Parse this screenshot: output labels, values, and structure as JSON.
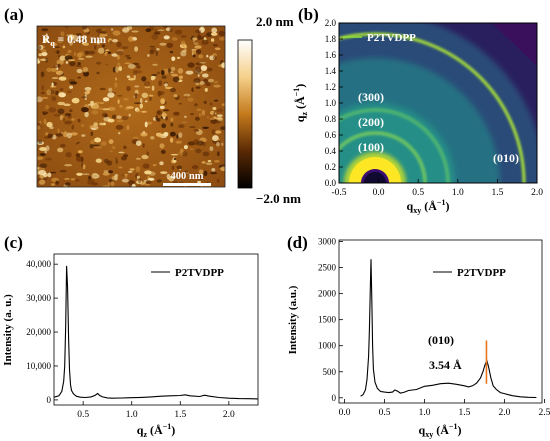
{
  "panels": {
    "a": {
      "label": "(a)",
      "roughness": "R",
      "roughness_sub": "q",
      "roughness_value": " = 0.48 nm",
      "scale_bar": "400 nm",
      "colorbar_max": "2.0 nm",
      "colorbar_min": "−2.0 nm"
    },
    "b": {
      "label": "(b)",
      "legend": "P2TVDPP",
      "peaks": [
        "(300)",
        "(200)",
        "(100)",
        "(010)"
      ],
      "ylabel_main": "q",
      "ylabel_sub": "z",
      "ylabel_unit": " (Å",
      "ylabel_sup": "−1",
      "ylabel_close": ")",
      "xlabel_main": "q",
      "xlabel_sub": "xy",
      "xlabel_unit": " (Å",
      "xlabel_sup": "−1",
      "xlabel_close": ")",
      "xticks": [
        "-0.5",
        "0.0",
        "0.5",
        "1.0",
        "1.5",
        "2.0"
      ],
      "yticks": [
        "0.0",
        "0.2",
        "0.4",
        "0.6",
        "0.8",
        "1.0",
        "1.2",
        "1.4",
        "1.6",
        "1.8",
        "2.0"
      ]
    },
    "c": {
      "label": "(c)",
      "legend": "P2TVDPP",
      "ylabel": "Intensity (a. u.)",
      "xlabel_main": "q",
      "xlabel_sub": "z",
      "xlabel_unit": " (Å",
      "xlabel_sup": "−1",
      "xlabel_close": ")",
      "xticks": [
        "0.5",
        "1.0",
        "1.5",
        "2.0"
      ],
      "yticks": [
        "0",
        "10,000",
        "20,000",
        "30,000",
        "40,000"
      ]
    },
    "d": {
      "label": "(d)",
      "legend": "P2TVDPP",
      "annotation_peak": "(010)",
      "annotation_d": "3.54 Å",
      "ylabel": "Intensity (a.u.)",
      "xlabel_main": "q",
      "xlabel_sub": "xy",
      "xlabel_unit": " (Å",
      "xlabel_sup": "−1",
      "xlabel_close": ")",
      "xticks": [
        "0.0",
        "0.5",
        "1.0",
        "1.5",
        "2.0",
        "2.5"
      ],
      "yticks": [
        "0",
        "500",
        "1000",
        "1500",
        "2000",
        "2500",
        "3000"
      ]
    }
  },
  "chart_data": [
    {
      "type": "heatmap",
      "panel": "(a)",
      "colorbar_range": [
        -2.0,
        2.0
      ],
      "colorbar_unit": "nm",
      "annotations": [
        "Rq = 0.48 nm",
        "400 nm"
      ]
    },
    {
      "type": "heatmap",
      "panel": "(b)",
      "legend": [
        "P2TVDPP"
      ],
      "xlim": [
        -0.5,
        2.0
      ],
      "ylim": [
        0.0,
        2.0
      ],
      "annotations": [
        "(300)",
        "(200)",
        "(100)",
        "(010)"
      ]
    },
    {
      "type": "line",
      "panel": "(c)",
      "xlim": [
        0.2,
        2.3
      ],
      "ylim": [
        -1500,
        43000
      ],
      "series": [
        {
          "name": "P2TVDPP",
          "x": [
            0.2,
            0.25,
            0.28,
            0.3,
            0.31,
            0.32,
            0.33,
            0.34,
            0.35,
            0.36,
            0.37,
            0.38,
            0.4,
            0.43,
            0.47,
            0.52,
            0.58,
            0.62,
            0.65,
            0.67,
            0.7,
            0.75,
            0.8,
            0.9,
            1.0,
            1.1,
            1.2,
            1.3,
            1.4,
            1.5,
            1.55,
            1.6,
            1.7,
            1.75,
            1.8,
            1.9,
            2.0,
            2.1,
            2.2,
            2.3
          ],
          "y": [
            800,
            1200,
            2500,
            5500,
            10000,
            22000,
            39500,
            33000,
            18000,
            9000,
            4500,
            2800,
            1800,
            1100,
            800,
            700,
            900,
            1300,
            1900,
            1300,
            900,
            600,
            500,
            550,
            650,
            750,
            900,
            1100,
            1200,
            1300,
            1500,
            1200,
            1000,
            1400,
            1100,
            700,
            500,
            400,
            350,
            300
          ]
        }
      ]
    },
    {
      "type": "line",
      "panel": "(d)",
      "xlim": [
        -0.07,
        2.47
      ],
      "ylim": [
        -100,
        3030
      ],
      "series": [
        {
          "name": "P2TVDPP",
          "x": [
            0.2,
            0.23,
            0.26,
            0.28,
            0.3,
            0.31,
            0.32,
            0.33,
            0.34,
            0.35,
            0.36,
            0.38,
            0.41,
            0.45,
            0.5,
            0.55,
            0.6,
            0.63,
            0.66,
            0.7,
            0.75,
            0.8,
            0.9,
            1.0,
            1.05,
            1.1,
            1.2,
            1.3,
            1.4,
            1.5,
            1.55,
            1.6,
            1.65,
            1.7,
            1.73,
            1.76,
            1.78,
            1.8,
            1.83,
            1.86,
            1.9,
            1.95,
            2.0,
            2.05,
            2.1,
            2.2,
            2.3,
            2.4
          ],
          "y": [
            30,
            60,
            150,
            350,
            800,
            1300,
            2000,
            2660,
            1900,
            1000,
            550,
            300,
            180,
            120,
            110,
            100,
            110,
            150,
            130,
            90,
            110,
            140,
            160,
            220,
            230,
            240,
            270,
            280,
            260,
            230,
            210,
            230,
            280,
            380,
            500,
            650,
            710,
            600,
            380,
            230,
            160,
            100,
            80,
            60,
            40,
            20,
            10,
            5
          ]
        }
      ],
      "peak_marker_x": 1.775,
      "annotations": [
        "(010)",
        "3.54 Å"
      ]
    }
  ]
}
